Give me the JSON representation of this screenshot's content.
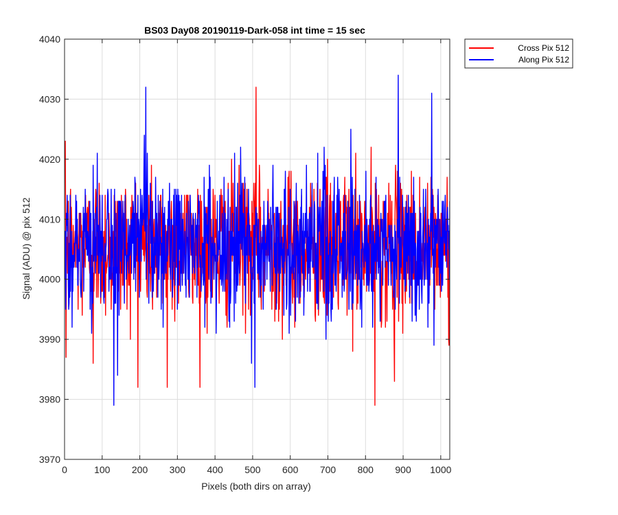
{
  "chart_data": {
    "type": "line",
    "title": "BS03 Day08 20190119-Dark-058 int time = 15 sec",
    "xlabel": "Pixels (both dirs on array)",
    "ylabel": "Signal (ADU) @ pix 512",
    "xlim": [
      0,
      1024
    ],
    "ylim": [
      3970,
      4040
    ],
    "xticks": [
      0,
      100,
      200,
      300,
      400,
      500,
      600,
      700,
      800,
      900,
      1000
    ],
    "yticks": [
      3970,
      3980,
      3990,
      4000,
      4010,
      4020,
      4030,
      4040
    ],
    "grid": true,
    "legend_position": "outside-top-right",
    "series": [
      {
        "name": "Cross Pix 512",
        "color": "#ff0000",
        "summary": {
          "n_points": 1024,
          "mean": 4005.5,
          "std": 6.0,
          "min": 3979,
          "max": 4032
        },
        "key_points": [
          {
            "x": 1,
            "y": 4023
          },
          {
            "x": 3,
            "y": 3987
          },
          {
            "x": 75,
            "y": 3986
          },
          {
            "x": 272,
            "y": 3982
          },
          {
            "x": 508,
            "y": 4032
          },
          {
            "x": 824,
            "y": 3979
          },
          {
            "x": 876,
            "y": 3983
          },
          {
            "x": 1020,
            "y": 3990
          }
        ]
      },
      {
        "name": "Along Pix 512",
        "color": "#0000ff",
        "summary": {
          "n_points": 1024,
          "mean": 4005.5,
          "std": 6.0,
          "min": 3979,
          "max": 4034
        },
        "key_points": [
          {
            "x": 130,
            "y": 3979
          },
          {
            "x": 140,
            "y": 3984
          },
          {
            "x": 215,
            "y": 4032
          },
          {
            "x": 505,
            "y": 3982
          },
          {
            "x": 886,
            "y": 4034
          },
          {
            "x": 975,
            "y": 4031
          }
        ]
      }
    ]
  }
}
